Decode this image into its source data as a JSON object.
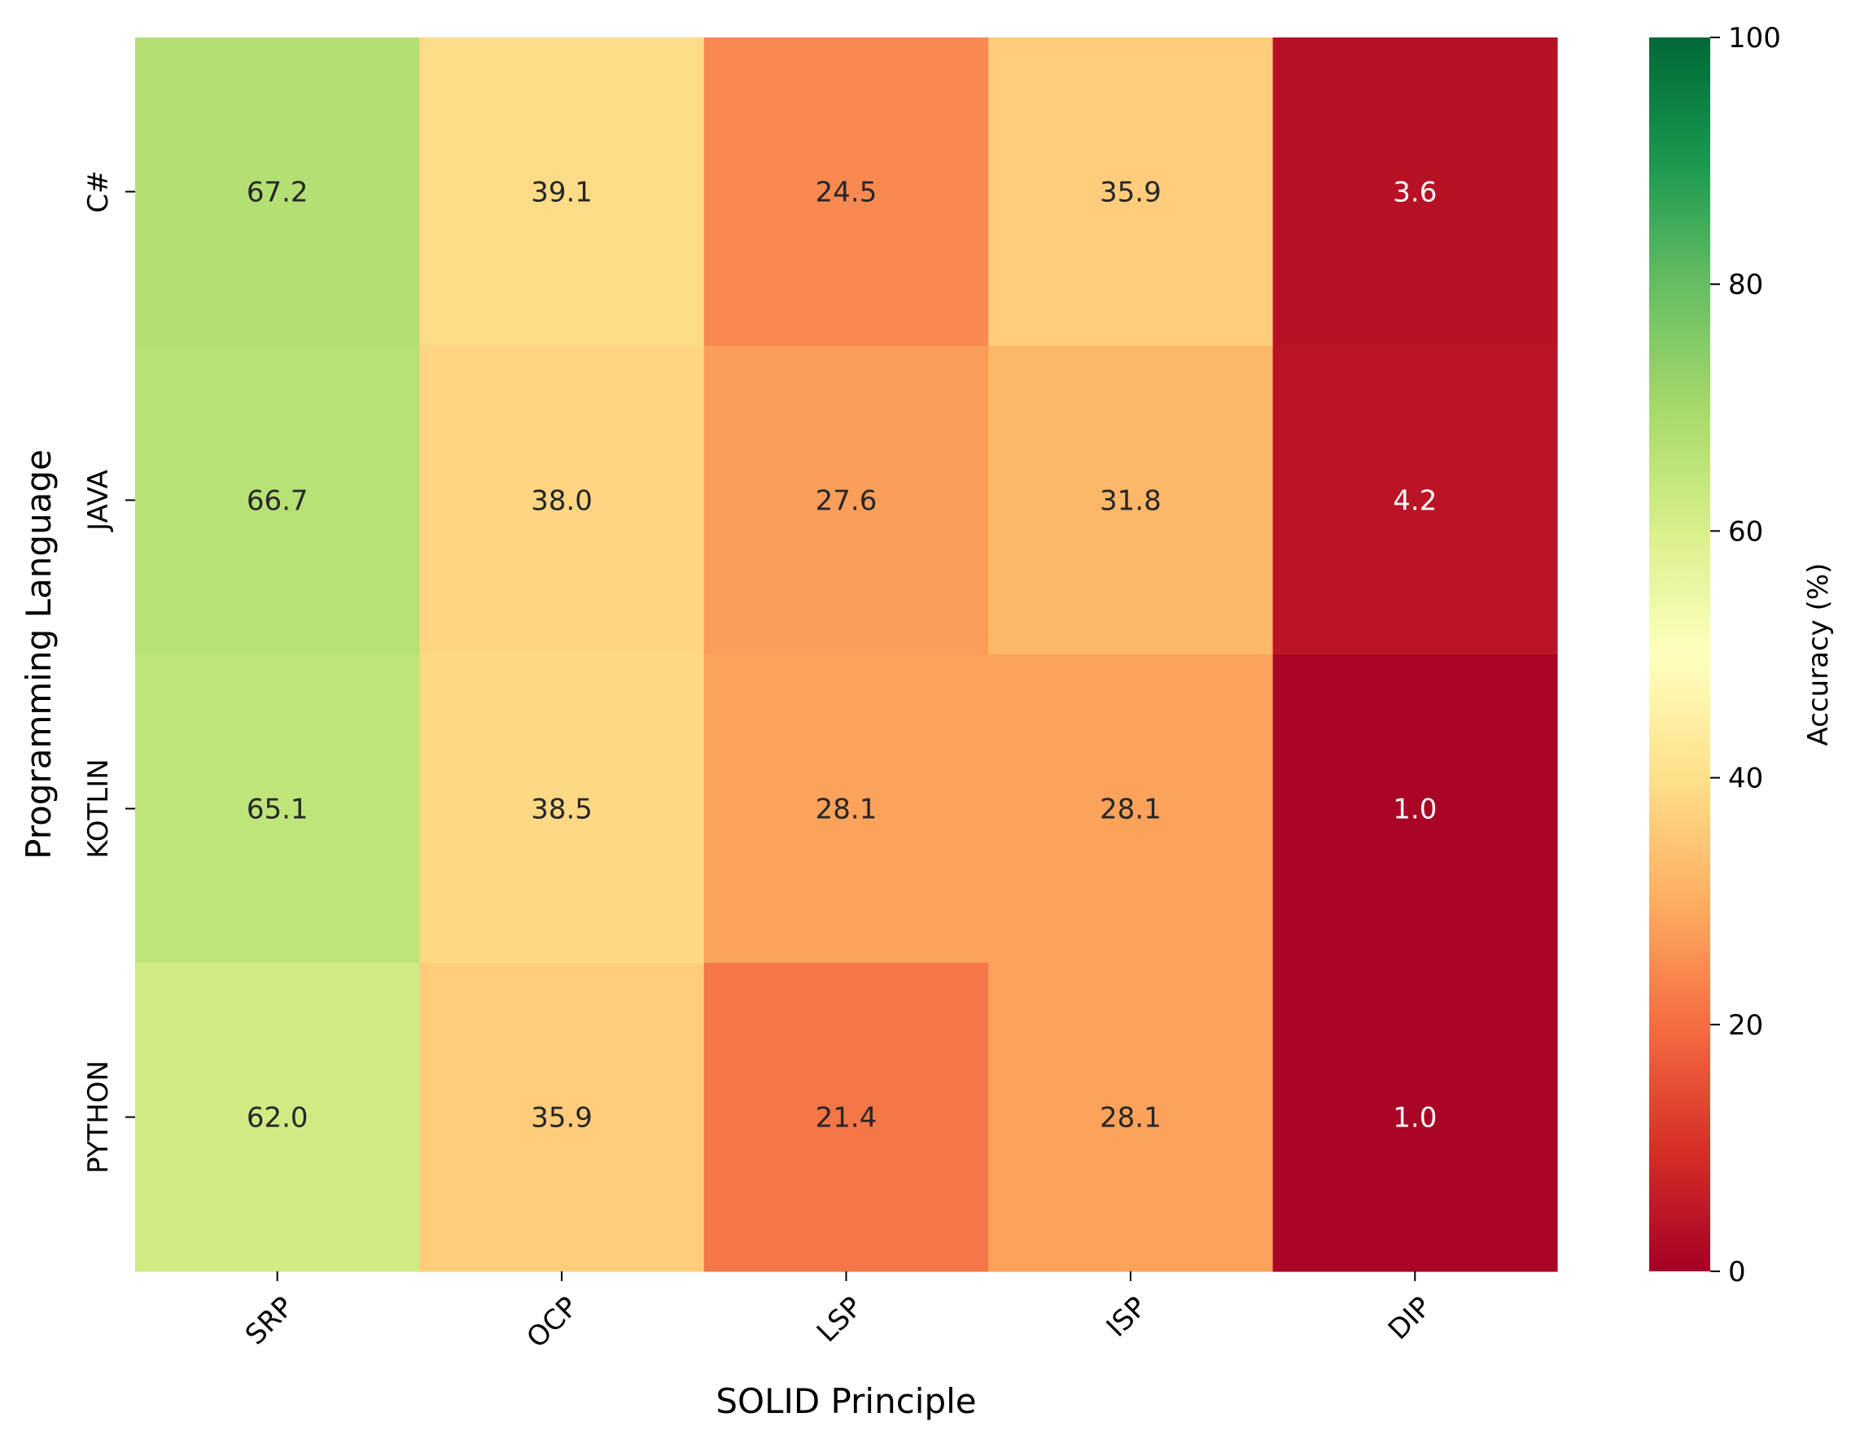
{
  "chart_data": {
    "type": "heatmap",
    "title": "",
    "xlabel": "SOLID Principle",
    "ylabel": "Programming Language",
    "x_categories": [
      "SRP",
      "OCP",
      "LSP",
      "ISP",
      "DIP"
    ],
    "y_categories": [
      "C#",
      "JAVA",
      "KOTLIN",
      "PYTHON"
    ],
    "values": [
      [
        67.2,
        39.1,
        24.5,
        35.9,
        3.6
      ],
      [
        66.7,
        38.0,
        27.6,
        31.8,
        4.2
      ],
      [
        65.1,
        38.5,
        28.1,
        28.1,
        1.0
      ],
      [
        62.0,
        35.9,
        21.4,
        28.1,
        1.0
      ]
    ],
    "value_labels": [
      [
        "67.2",
        "39.1",
        "24.5",
        "35.9",
        "3.6"
      ],
      [
        "66.7",
        "38.0",
        "27.6",
        "31.8",
        "4.2"
      ],
      [
        "65.1",
        "38.5",
        "28.1",
        "28.1",
        "1.0"
      ],
      [
        "62.0",
        "35.9",
        "21.4",
        "28.1",
        "1.0"
      ]
    ],
    "colormap": "RdYlGn",
    "vmin": 0,
    "vmax": 100,
    "colorbar": {
      "label": "Accuracy (%)",
      "ticks": [
        0,
        20,
        40,
        60,
        80,
        100
      ],
      "tick_labels": [
        "0",
        "20",
        "40",
        "60",
        "80",
        "100"
      ]
    },
    "grid": false
  }
}
